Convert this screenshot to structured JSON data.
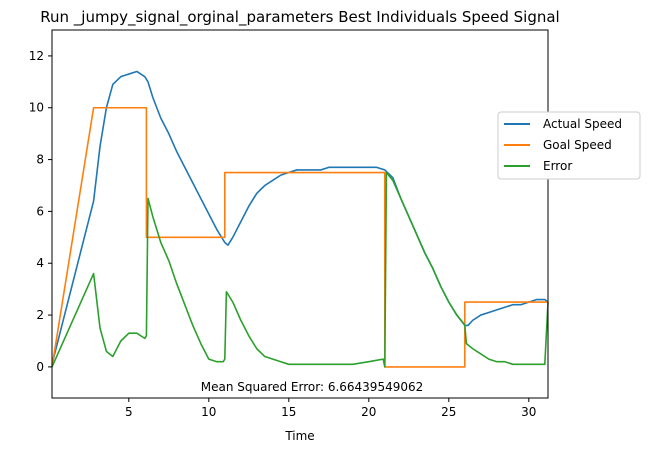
{
  "chart_data": {
    "type": "line",
    "title": "Run _jumpy_signal_orginal_parameters Best Individuals Speed Signal",
    "xlabel": "Time",
    "ylabel": "",
    "xlim": [
      0.2,
      31.2
    ],
    "ylim": [
      -1.2,
      13.0
    ],
    "x_ticks": [
      5,
      10,
      15,
      20,
      25,
      30
    ],
    "y_ticks": [
      0,
      2,
      4,
      6,
      8,
      10,
      12
    ],
    "grid": false,
    "legend_position": "right",
    "annotation": "Mean Squared Error: 6.66439549062",
    "series": [
      {
        "name": "Actual Speed",
        "color": "#1f77b4",
        "x": [
          0.2,
          2.8,
          3.2,
          3.6,
          4.0,
          4.5,
          5.0,
          5.5,
          6.0,
          6.2,
          6.5,
          7.0,
          7.5,
          8.0,
          8.5,
          9.0,
          9.5,
          10.0,
          10.5,
          11.0,
          11.2,
          11.5,
          12.0,
          12.5,
          13.0,
          13.5,
          14.0,
          14.5,
          15.0,
          15.5,
          16.0,
          16.5,
          17.0,
          17.5,
          18.0,
          18.5,
          19.0,
          19.5,
          20.0,
          20.5,
          21.0,
          21.5,
          22.0,
          22.5,
          23.0,
          23.5,
          24.0,
          24.5,
          25.0,
          25.5,
          26.0,
          26.2,
          26.5,
          27.0,
          27.5,
          28.0,
          28.5,
          29.0,
          29.5,
          30.0,
          30.5,
          31.0,
          31.2
        ],
        "y": [
          0.1,
          6.4,
          8.5,
          10.0,
          10.9,
          11.2,
          11.3,
          11.4,
          11.2,
          11.0,
          10.4,
          9.6,
          9.0,
          8.3,
          7.7,
          7.1,
          6.5,
          5.9,
          5.3,
          4.8,
          4.7,
          5.0,
          5.6,
          6.2,
          6.7,
          7.0,
          7.2,
          7.4,
          7.5,
          7.6,
          7.6,
          7.6,
          7.6,
          7.7,
          7.7,
          7.7,
          7.7,
          7.7,
          7.7,
          7.7,
          7.6,
          7.3,
          6.5,
          5.8,
          5.1,
          4.4,
          3.8,
          3.1,
          2.5,
          2.0,
          1.6,
          1.6,
          1.8,
          2.0,
          2.1,
          2.2,
          2.3,
          2.4,
          2.4,
          2.5,
          2.6,
          2.6,
          2.5
        ]
      },
      {
        "name": "Goal Speed",
        "color": "#ff7f0e",
        "x": [
          0.2,
          2.8,
          6.1,
          6.1,
          11.0,
          11.0,
          21.0,
          21.0,
          26.0,
          26.0,
          31.2
        ],
        "y": [
          0.0,
          10.0,
          10.0,
          5.0,
          5.0,
          7.5,
          7.5,
          0.0,
          0.0,
          2.5,
          2.5
        ]
      },
      {
        "name": "Error",
        "color": "#2ca02c",
        "x": [
          0.2,
          2.8,
          3.2,
          3.6,
          4.0,
          4.5,
          5.0,
          5.5,
          6.0,
          6.1,
          6.2,
          6.5,
          7.0,
          7.5,
          8.0,
          8.5,
          9.0,
          9.5,
          10.0,
          10.5,
          10.9,
          11.0,
          11.1,
          11.5,
          12.0,
          12.5,
          13.0,
          13.5,
          14.0,
          14.5,
          15.0,
          16.0,
          17.0,
          18.0,
          19.0,
          20.0,
          20.9,
          21.0,
          21.1,
          21.5,
          22.0,
          22.5,
          23.0,
          23.5,
          24.0,
          24.5,
          25.0,
          25.5,
          25.9,
          26.0,
          26.1,
          26.5,
          27.0,
          27.5,
          28.0,
          28.5,
          29.0,
          29.5,
          30.0,
          30.5,
          31.0,
          31.2
        ],
        "y": [
          0.0,
          3.6,
          1.5,
          0.6,
          0.4,
          1.0,
          1.3,
          1.3,
          1.1,
          1.2,
          6.5,
          5.8,
          4.8,
          4.1,
          3.2,
          2.4,
          1.6,
          0.9,
          0.3,
          0.2,
          0.2,
          0.3,
          2.9,
          2.5,
          1.8,
          1.2,
          0.7,
          0.4,
          0.3,
          0.2,
          0.1,
          0.1,
          0.1,
          0.1,
          0.1,
          0.2,
          0.3,
          0.0,
          7.5,
          7.2,
          6.5,
          5.8,
          5.1,
          4.4,
          3.8,
          3.1,
          2.5,
          2.0,
          1.7,
          1.6,
          0.9,
          0.7,
          0.5,
          0.3,
          0.2,
          0.2,
          0.1,
          0.1,
          0.1,
          0.1,
          0.1,
          2.5
        ]
      }
    ]
  }
}
